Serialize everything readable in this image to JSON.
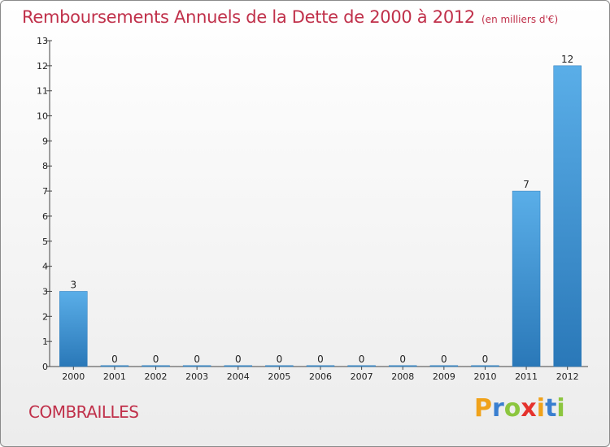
{
  "chart_data": {
    "type": "bar",
    "title": "Remboursements Annuels de la Dette de 2000 à 2012",
    "subtitle": "(en milliers d'€)",
    "categories": [
      "2000",
      "2001",
      "2002",
      "2003",
      "2004",
      "2005",
      "2006",
      "2007",
      "2008",
      "2009",
      "2010",
      "2011",
      "2012"
    ],
    "values": [
      3,
      0,
      0,
      0,
      0,
      0,
      0,
      0,
      0,
      0,
      0,
      7,
      12
    ],
    "data_labels": [
      "3",
      "0",
      "0",
      "0",
      "0",
      "0",
      "0",
      "0",
      "0",
      "0",
      "0",
      "7",
      "12"
    ],
    "ylim": [
      0,
      13
    ],
    "yticks": [
      0,
      1,
      2,
      3,
      4,
      5,
      6,
      7,
      8,
      9,
      10,
      11,
      12,
      13
    ],
    "ytick_labels": [
      "0",
      "1",
      "2",
      "3",
      "4",
      "5",
      "6",
      "7",
      "8",
      "9",
      "10",
      "11",
      "12",
      "13"
    ],
    "grid": false,
    "bar_color_top": "#5aaee8",
    "bar_color_bottom": "#2a78b8"
  },
  "footer": {
    "place": "COMBRAILLES"
  },
  "logo": {
    "letters": [
      {
        "char": "P",
        "color": "#f0a21a"
      },
      {
        "char": "r",
        "color": "#3a7fd0"
      },
      {
        "char": "o",
        "color": "#8cc63f"
      },
      {
        "char": "x",
        "color": "#e5322d"
      },
      {
        "char": "i",
        "color": "#f0a21a"
      },
      {
        "char": "t",
        "color": "#3a7fd0"
      },
      {
        "char": "i",
        "color": "#8cc63f"
      }
    ]
  }
}
